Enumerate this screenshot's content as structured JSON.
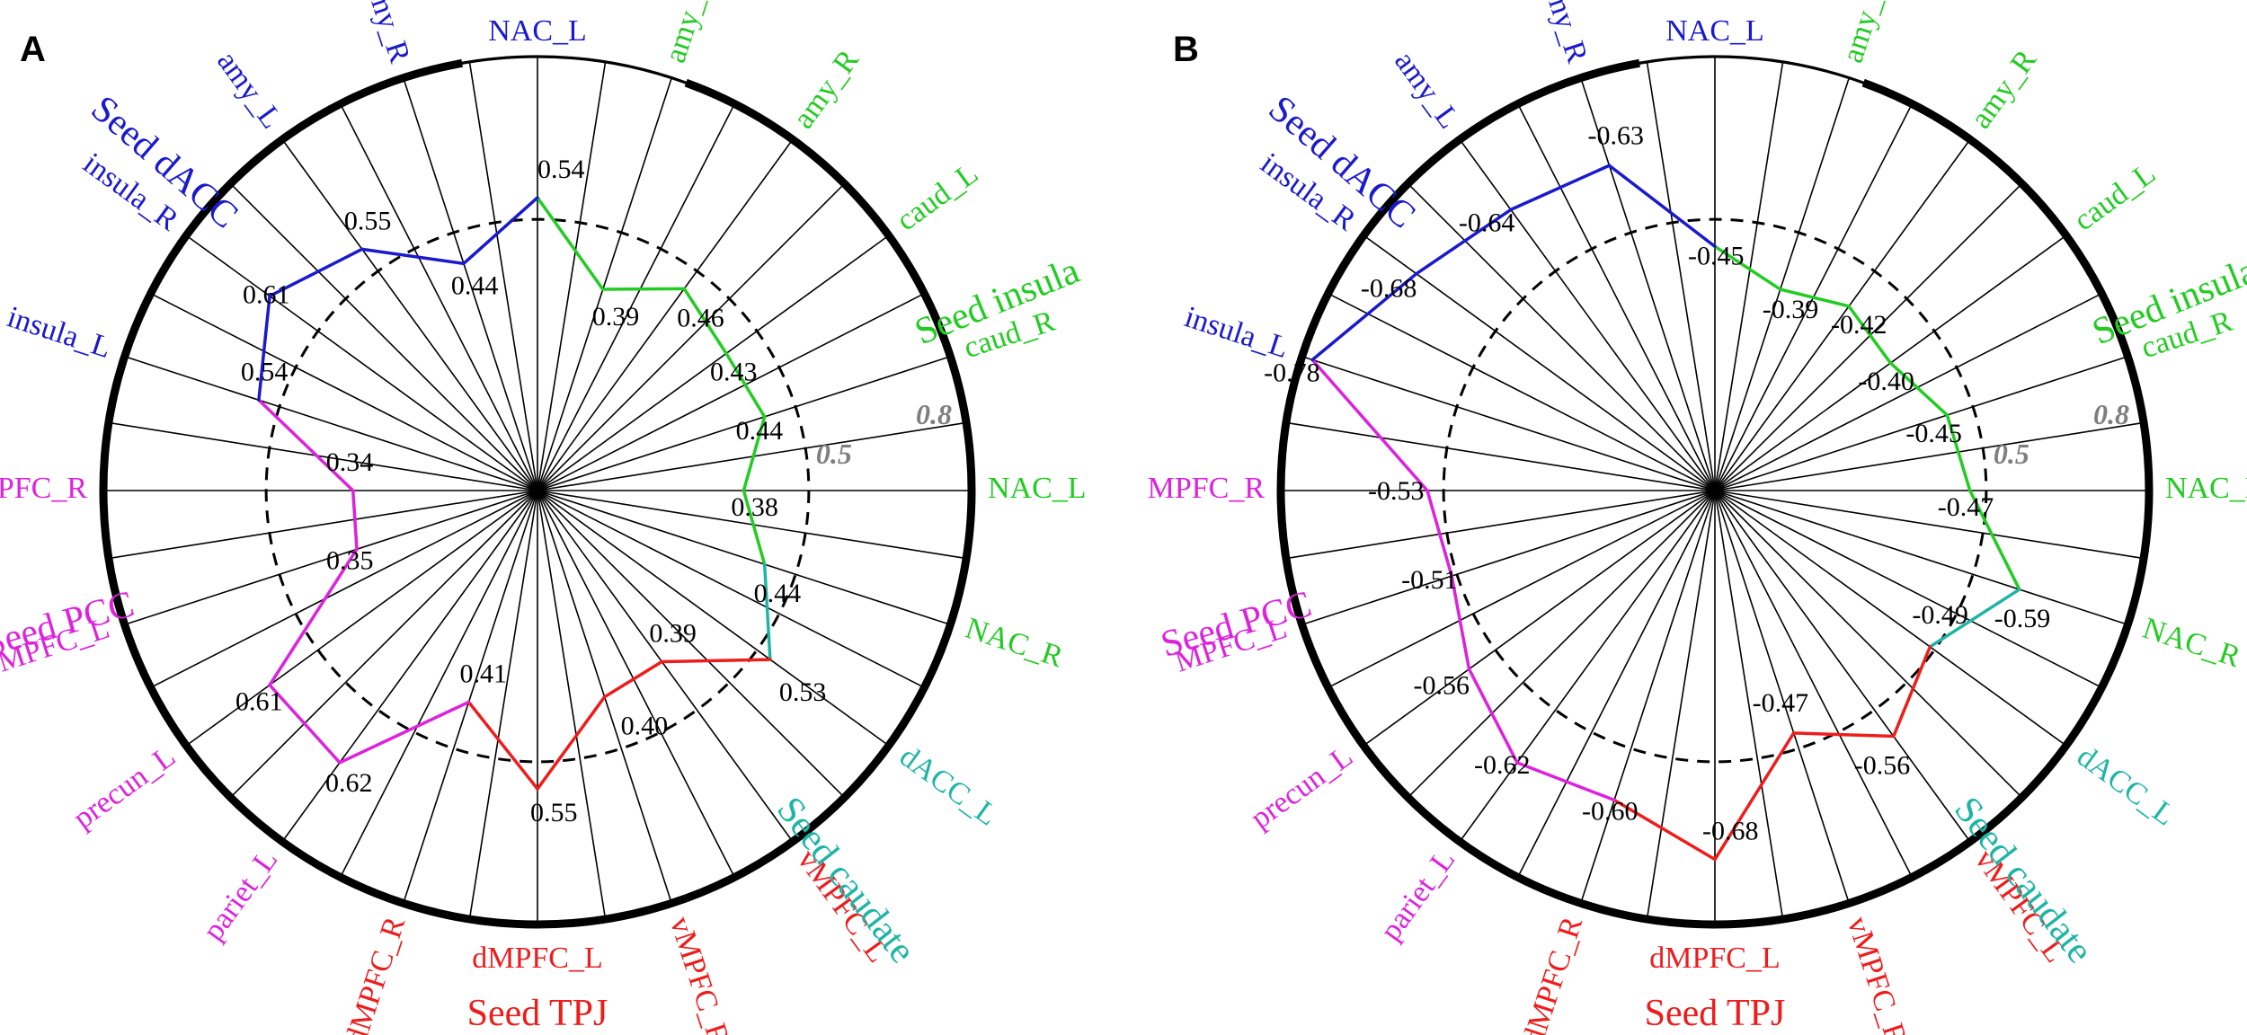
{
  "colors": {
    "blue": "#1a1acc",
    "green": "#22cc22",
    "red": "#ee1c1c",
    "magenta": "#dd22dd",
    "teal": "#1fb5a5",
    "gray": "#7f7f7f"
  },
  "axis_labels": [
    {
      "text": "NAC_L",
      "group": "blue"
    },
    {
      "text": "amy_L",
      "group": "green"
    },
    {
      "text": "amy_R",
      "group": "green"
    },
    {
      "text": "caud_L",
      "group": "green"
    },
    {
      "text": "caud_R",
      "group": "green"
    },
    {
      "text": "NAC_L",
      "group": "green"
    },
    {
      "text": "NAC_R",
      "group": "green"
    },
    {
      "text": "dACC_L",
      "group": "teal"
    },
    {
      "text": "vMPFC_L",
      "group": "red"
    },
    {
      "text": "vMPFC_R",
      "group": "red"
    },
    {
      "text": "dMPFC_L",
      "group": "red"
    },
    {
      "text": "dMPFC_R",
      "group": "red"
    },
    {
      "text": "pariet_L",
      "group": "magenta"
    },
    {
      "text": "precun_L",
      "group": "magenta"
    },
    {
      "text": "MPFC_L",
      "group": "magenta"
    },
    {
      "text": "MPFC_R",
      "group": "magenta"
    },
    {
      "text": "insula_L",
      "group": "blue"
    },
    {
      "text": "insula_R",
      "group": "blue"
    },
    {
      "text": "amy_L",
      "group": "blue"
    },
    {
      "text": "amy_R",
      "group": "blue"
    }
  ],
  "seeds": [
    {
      "text": "Seed dACC",
      "group": "blue",
      "angle": -49
    },
    {
      "text": "Seed insula",
      "group": "green",
      "angle": 68
    },
    {
      "text": "Seed caudate",
      "group": "teal",
      "angle": 142
    },
    {
      "text": "Seed TPJ",
      "group": "red",
      "angle": 180
    },
    {
      "text": "Seed PCC",
      "group": "magenta",
      "angle": 254
    }
  ],
  "chart_data": [
    {
      "panel": "A",
      "type": "radar",
      "ring_labels": [
        "0.5",
        "0.8"
      ],
      "rlim": [
        0,
        0.8
      ],
      "value_labels": [
        "0.54",
        "0.39",
        "0.46",
        "0.43",
        "0.44",
        "0.38",
        "0.44",
        "0.53",
        "0.39",
        "0.40",
        "0.55",
        "0.41",
        "0.62",
        "0.61",
        "0.35",
        "0.34",
        "0.54",
        "0.61",
        "0.55",
        "0.44"
      ],
      "values": [
        0.54,
        0.39,
        0.46,
        0.43,
        0.44,
        0.38,
        0.44,
        0.53,
        0.39,
        0.4,
        0.55,
        0.41,
        0.62,
        0.61,
        0.35,
        0.34,
        0.54,
        0.61,
        0.55,
        0.44
      ]
    },
    {
      "panel": "B",
      "type": "radar",
      "ring_labels": [
        "0.5",
        "0.8"
      ],
      "rlim": [
        0,
        0.8
      ],
      "value_labels": [
        "-0.45",
        "-0.39",
        "-0.42",
        "-0.40",
        "-0.45",
        "-0.47",
        "-0.59",
        "-0.49",
        "-0.56",
        "-0.47",
        "-0.68",
        "-0.60",
        "-0.62",
        "-0.56",
        "-0.51",
        "-0.53",
        "-0.78",
        "-0.68",
        "-0.64",
        "-0.63"
      ],
      "values": [
        -0.45,
        -0.39,
        -0.42,
        -0.4,
        -0.45,
        -0.47,
        -0.59,
        -0.49,
        -0.56,
        -0.47,
        -0.68,
        -0.6,
        -0.62,
        -0.56,
        -0.51,
        -0.53,
        -0.78,
        -0.68,
        -0.64,
        -0.63
      ]
    }
  ]
}
